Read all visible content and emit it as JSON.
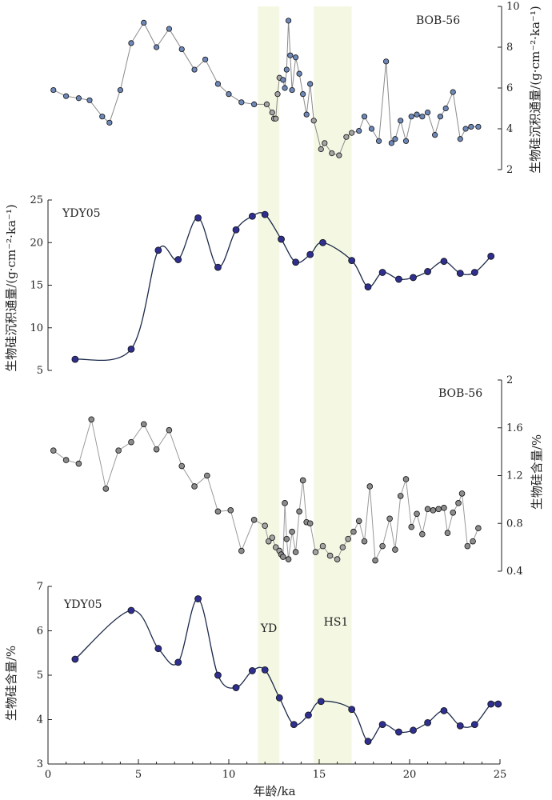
{
  "chart_data": [
    {
      "type": "line",
      "panel": "bob56-flux",
      "title": "BOB-56",
      "ylabel": "生物硅沉积通量/(g·cm⁻²·ka⁻¹)",
      "ylim": [
        2,
        10
      ],
      "yticks": [
        "2",
        "4",
        "6",
        "8",
        "10"
      ],
      "ytick_values": [
        2,
        4,
        6,
        8,
        10
      ],
      "y_axis_side": "right",
      "series": [
        {
          "color": "#8a8a8a",
          "marker_color": "#6e88b8",
          "marker_color_in_bands": "#a4a4a4",
          "x": [
            0.3,
            1.0,
            1.7,
            2.3,
            3.0,
            3.4,
            4.0,
            4.6,
            5.3,
            6.0,
            6.7,
            7.4,
            8.1,
            8.7,
            9.4,
            10.0,
            10.7,
            11.4,
            12.1,
            12.4,
            12.5,
            12.6,
            12.7,
            12.8,
            13.0,
            13.1,
            13.2,
            13.3,
            13.4,
            13.5,
            13.7,
            13.9,
            14.1,
            14.3,
            14.5,
            14.7,
            15.1,
            15.3,
            15.7,
            16.1,
            16.5,
            16.8,
            17.2,
            17.5,
            17.9,
            18.3,
            18.7,
            19.0,
            19.2,
            19.5,
            19.8,
            20.1,
            20.4,
            20.7,
            21.0,
            21.4,
            21.7,
            22.0,
            22.4,
            22.8,
            23.1,
            23.4,
            23.8
          ],
          "y": [
            5.9,
            5.6,
            5.5,
            5.4,
            4.6,
            4.3,
            5.9,
            8.2,
            9.2,
            8.0,
            8.9,
            7.9,
            6.9,
            7.4,
            6.2,
            5.7,
            5.3,
            5.2,
            5.2,
            4.8,
            4.5,
            4.5,
            5.7,
            6.5,
            6.4,
            6.0,
            6.9,
            9.3,
            7.6,
            5.9,
            7.5,
            6.7,
            5.7,
            4.7,
            6.2,
            4.4,
            3.0,
            3.3,
            2.8,
            2.7,
            3.6,
            3.8,
            3.9,
            4.6,
            4.0,
            3.4,
            7.3,
            3.3,
            3.5,
            4.4,
            3.4,
            4.6,
            4.7,
            4.6,
            4.8,
            3.7,
            4.6,
            5.0,
            5.8,
            3.5,
            4.0,
            4.1,
            4.1
          ]
        }
      ]
    },
    {
      "type": "line",
      "panel": "ydy05-flux",
      "title": "YDY05",
      "ylabel": "生物硅沉积通量/(g·cm⁻²·ka⁻¹)",
      "ylim": [
        5,
        25
      ],
      "yticks": [
        "5",
        "10",
        "15",
        "20",
        "25"
      ],
      "ytick_values": [
        5,
        10,
        15,
        20,
        25
      ],
      "y_axis_side": "left",
      "series": [
        {
          "color": "#1c2a4a",
          "marker_color": "#2e2f8e",
          "x": [
            1.5,
            4.6,
            6.1,
            7.2,
            8.3,
            9.4,
            10.4,
            11.3,
            12.0,
            12.9,
            13.7,
            14.5,
            15.2,
            16.8,
            17.7,
            18.5,
            19.4,
            20.2,
            21.0,
            21.9,
            22.8,
            23.6,
            24.5
          ],
          "y": [
            6.3,
            7.5,
            19.1,
            18.0,
            22.9,
            17.1,
            21.5,
            23.1,
            23.3,
            20.4,
            17.7,
            18.6,
            20.0,
            17.9,
            14.8,
            16.5,
            15.7,
            15.9,
            16.6,
            17.8,
            16.4,
            16.5,
            18.4
          ]
        }
      ]
    },
    {
      "type": "line",
      "panel": "bob56-content",
      "title": "BOB-56",
      "ylabel": "生物硅含量/%",
      "ylim": [
        0.4,
        2
      ],
      "yticks": [
        "0.4",
        "0.8",
        "1.2",
        "1.6",
        "2"
      ],
      "ytick_values": [
        0.4,
        0.8,
        1.2,
        1.6,
        2.0
      ],
      "y_axis_side": "right",
      "series": [
        {
          "color": "#9a9a9a",
          "marker_color": "#8c8c8c",
          "marker_color_in_bands": "#a4a4a4",
          "x": [
            0.3,
            1.0,
            1.7,
            2.4,
            3.2,
            3.9,
            4.6,
            5.3,
            6.0,
            6.7,
            7.4,
            8.1,
            8.8,
            9.4,
            10.1,
            10.7,
            11.4,
            12.0,
            12.2,
            12.4,
            12.6,
            12.8,
            12.9,
            13.0,
            13.1,
            13.2,
            13.3,
            13.5,
            13.7,
            13.9,
            14.1,
            14.3,
            14.5,
            14.8,
            15.2,
            15.6,
            16.0,
            16.3,
            16.6,
            16.9,
            17.2,
            17.5,
            17.8,
            18.1,
            18.5,
            18.9,
            19.2,
            19.5,
            19.8,
            20.1,
            20.4,
            20.7,
            21.0,
            21.3,
            21.6,
            21.9,
            22.1,
            22.4,
            22.7,
            22.9,
            23.2,
            23.5,
            23.8
          ],
          "y": [
            1.41,
            1.33,
            1.3,
            1.67,
            1.09,
            1.41,
            1.48,
            1.63,
            1.42,
            1.58,
            1.28,
            1.11,
            1.2,
            0.9,
            0.91,
            0.57,
            0.83,
            0.78,
            0.65,
            0.68,
            0.6,
            0.57,
            0.54,
            0.52,
            0.97,
            0.67,
            0.5,
            0.73,
            0.56,
            0.9,
            1.16,
            0.81,
            0.8,
            0.56,
            0.61,
            0.53,
            0.5,
            0.6,
            0.67,
            0.73,
            0.82,
            0.65,
            1.11,
            0.49,
            0.61,
            0.84,
            0.58,
            1.03,
            1.17,
            0.77,
            0.88,
            0.71,
            0.92,
            0.91,
            0.92,
            0.93,
            0.72,
            0.89,
            0.97,
            1.05,
            0.61,
            0.65,
            0.76
          ]
        }
      ]
    },
    {
      "type": "line",
      "panel": "ydy05-content",
      "title": "YDY05",
      "xlabel": "年龄/ka",
      "ylabel": "生物硅含量/%",
      "xlim": [
        0,
        25
      ],
      "xticks": [
        "0",
        "5",
        "10",
        "15",
        "20",
        "25"
      ],
      "xtick_values": [
        0,
        5,
        10,
        15,
        20,
        25
      ],
      "ylim": [
        3,
        7
      ],
      "yticks": [
        "3",
        "4",
        "5",
        "6",
        "7"
      ],
      "ytick_values": [
        3,
        4,
        5,
        6,
        7
      ],
      "y_axis_side": "left",
      "series": [
        {
          "color": "#1c2a4a",
          "marker_color": "#2e2f8e",
          "x": [
            1.5,
            4.6,
            6.1,
            7.2,
            8.3,
            9.4,
            10.4,
            11.3,
            12.0,
            12.8,
            13.6,
            14.4,
            15.1,
            16.8,
            17.7,
            18.5,
            19.4,
            20.2,
            21.0,
            21.9,
            22.8,
            23.6,
            24.5,
            24.9
          ],
          "y": [
            5.36,
            6.46,
            5.6,
            5.29,
            6.72,
            5.0,
            4.72,
            5.1,
            5.12,
            4.49,
            3.89,
            4.1,
            4.41,
            4.23,
            3.51,
            3.89,
            3.72,
            3.76,
            3.93,
            4.2,
            3.86,
            3.89,
            4.35,
            4.35
          ]
        }
      ]
    }
  ],
  "events": [
    {
      "label": "YD",
      "x_range": [
        11.6,
        12.8
      ],
      "color": "#f4f8e3"
    },
    {
      "label": "HS1",
      "x_range": [
        14.7,
        16.8
      ],
      "color": "#f4f8e3"
    }
  ]
}
